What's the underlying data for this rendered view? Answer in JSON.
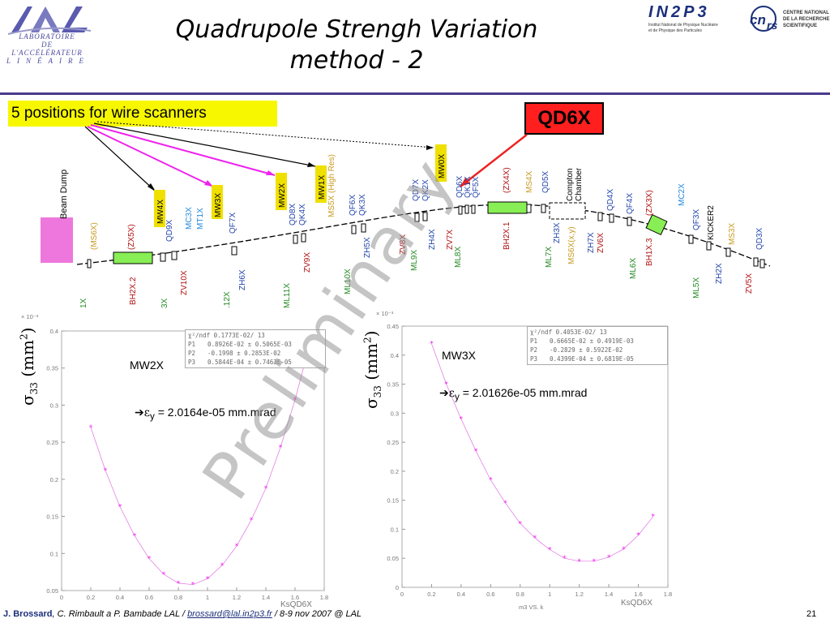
{
  "header": {
    "title_line1": "Quadrupole Strengh Variation",
    "title_line2": "method - 2",
    "lal_logo": "LAL",
    "lal_text_line1": "LABORATOIRE",
    "lal_text_line2": "DE L'ACCÉLÉRATEUR",
    "lal_text_line3": "LINÉAIRE",
    "in2p3": "IN2P3",
    "in2p3_sub1": "Institut National de Physique Nucléaire",
    "in2p3_sub2": "et de Physique des Particules",
    "cnrs": "CNRS",
    "cnrs_sub1": "CENTRE NATIONAL",
    "cnrs_sub2": "DE LA RECHERCHE",
    "cnrs_sub3": "SCIENTIFIQUE"
  },
  "callouts": {
    "wire_scanners": "5 positions for wire scanners",
    "qd6x": "QD6X"
  },
  "beamline_labels": {
    "beam_dump": "Beam Dump",
    "top_row": [
      "(MS6X)",
      "(ZX5X)",
      "MW4X",
      "QD9X",
      "MC3X",
      "MT1X",
      "MW3X",
      "QF7X",
      "MW2X",
      "QD8X",
      "QK4X",
      "MW1X",
      "MS5X (High Res)",
      "QF6X",
      "QK3X",
      "QD7X",
      "QK2X",
      "MW0X",
      "QD6X",
      "QK1X",
      "QF5X",
      "(ZX4X)",
      "MS4X",
      "QD5X",
      "Compton Chamber",
      "QD4X",
      "QF4X",
      "(ZX3X)",
      "MC2X",
      "QF3X",
      "KICKER2",
      "MS3X",
      "QD3X"
    ],
    "bottom_row": [
      "1X",
      "BH2X.2",
      "3X",
      "ZV10X",
      "ZH6X",
      ".12X",
      "ML11X",
      "ZV9X",
      "ML10X",
      "ZH5X",
      "ZV8X",
      "ML9X",
      "ZH4X",
      "ZV7X",
      "ML8X",
      "BH2X.1",
      "ML7X",
      "ZH3X",
      "MS6X(x,y)",
      "ZH7X",
      "ZV6X",
      "ML6X",
      "BH1X.3",
      "ML5X",
      "ZH2X",
      "ZV5X"
    ]
  },
  "plots": {
    "left": {
      "name": "MW2X",
      "emittance_arrow": "➔",
      "emittance_symbol": "ε",
      "emittance_sub": "y",
      "emittance_value": " = 2.0164e-05 mm.mrad",
      "ylabel": "σ",
      "ylabel_sub": "33",
      "ylabel_unit": " (mm",
      "ylabel_sup": "2",
      "ylabel_end": ")",
      "yscale": "× 10⁻³",
      "yticks": [
        "0.4",
        "0.35",
        "0.3",
        "0.25",
        "0.2",
        "0.15",
        "0.1",
        "0.05"
      ],
      "xticks": [
        "0",
        "0.2",
        "0.4",
        "0.6",
        "0.8",
        "1",
        "1.2",
        "1.4",
        "1.6",
        "1.8"
      ],
      "xlabel": "KsQD6X",
      "fit": {
        "header": "χ²/ndf  0.1773E-02/  13",
        "rows": [
          [
            "P1",
            "0.8926E-02 ±  0.5065E-03"
          ],
          [
            "P2",
            "-0.1998 ±  0.2853E-02"
          ],
          [
            "P3",
            "0.5844E-04 ±  0.7463E-05"
          ]
        ]
      }
    },
    "right": {
      "name": "MW3X",
      "emittance_arrow": "➔",
      "emittance_symbol": "ε",
      "emittance_sub": "y",
      "emittance_value": " = 2.01626e-05 mm.mrad",
      "ylabel": "σ",
      "ylabel_sub": "33",
      "ylabel_unit": " (mm",
      "ylabel_sup": "2",
      "ylabel_end": ")",
      "yscale": "× 10⁻³",
      "yticks": [
        "0.45",
        "0.4",
        "0.35",
        "0.3",
        "0.25",
        "0.2",
        "0.15",
        "0.1",
        "0.05",
        "0"
      ],
      "xticks": [
        "0",
        "0.2",
        "0.4",
        "0.6",
        "0.8",
        "1",
        "1.2",
        "1.4",
        "1.6",
        "1.8"
      ],
      "xlabel": "KsQD6X",
      "xlabel2": "m3 VS. k",
      "fit": {
        "header": "χ²/ndf  0.4053E-02/  13",
        "rows": [
          [
            "P1",
            "0.6665E-02 ±  0.4919E-03"
          ],
          [
            "P2",
            "-0.2829 ±  0.5922E-02"
          ],
          [
            "P3",
            "0.4399E-04 ±  0.6819E-05"
          ]
        ]
      }
    }
  },
  "chart_data": [
    {
      "type": "scatter",
      "title": "MW2X",
      "xlabel": "KsQD6X",
      "ylabel": "σ33 (mm²)",
      "xlim": [
        0,
        1.8
      ],
      "ylim": [
        0.05,
        0.4
      ],
      "y_scale_factor": "×10⁻³",
      "series": [
        {
          "x": [
            0.2,
            0.3,
            0.4,
            0.5,
            0.6,
            0.7,
            0.8,
            0.9,
            1.0,
            1.1,
            1.2,
            1.3,
            1.4,
            1.5,
            1.6,
            1.7
          ],
          "values": [
            0.27,
            0.212,
            0.163,
            0.124,
            0.093,
            0.072,
            0.06,
            0.058,
            0.066,
            0.084,
            0.11,
            0.145,
            0.188,
            0.243,
            0.307,
            0.382
          ]
        }
      ]
    },
    {
      "type": "scatter",
      "title": "MW3X",
      "xlabel": "KsQD6X",
      "ylabel": "σ33 (mm²)",
      "xlim": [
        0,
        1.8
      ],
      "ylim": [
        0,
        0.45
      ],
      "y_scale_factor": "×10⁻³",
      "series": [
        {
          "x": [
            0.2,
            0.3,
            0.4,
            0.5,
            0.6,
            0.7,
            0.8,
            0.9,
            1.0,
            1.1,
            1.2,
            1.3,
            1.4,
            1.5,
            1.6,
            1.7
          ],
          "values": [
            0.42,
            0.35,
            0.29,
            0.235,
            0.185,
            0.145,
            0.11,
            0.085,
            0.065,
            0.05,
            0.045,
            0.045,
            0.052,
            0.066,
            0.09,
            0.122
          ]
        }
      ]
    }
  ],
  "footer": {
    "author": "J. Brossard",
    "coauthors": ", C. Rimbault a P. Bambade LAL / ",
    "email": "brossard@lal.in2p3.fr",
    "date": " / 8-9 nov 2007 @ LAL",
    "page": "21"
  },
  "watermark": "Preliminary",
  "colors": {
    "header_rule": "#4a3a8c",
    "callout_yellow": "#f7f700",
    "qd6x_red": "#ff1f1f",
    "arrow_magenta": "#ee22ee",
    "plot_marker": "#ee22ee",
    "dipole_green": "#88ee55",
    "beam_dump_pink": "#ee77dd"
  }
}
